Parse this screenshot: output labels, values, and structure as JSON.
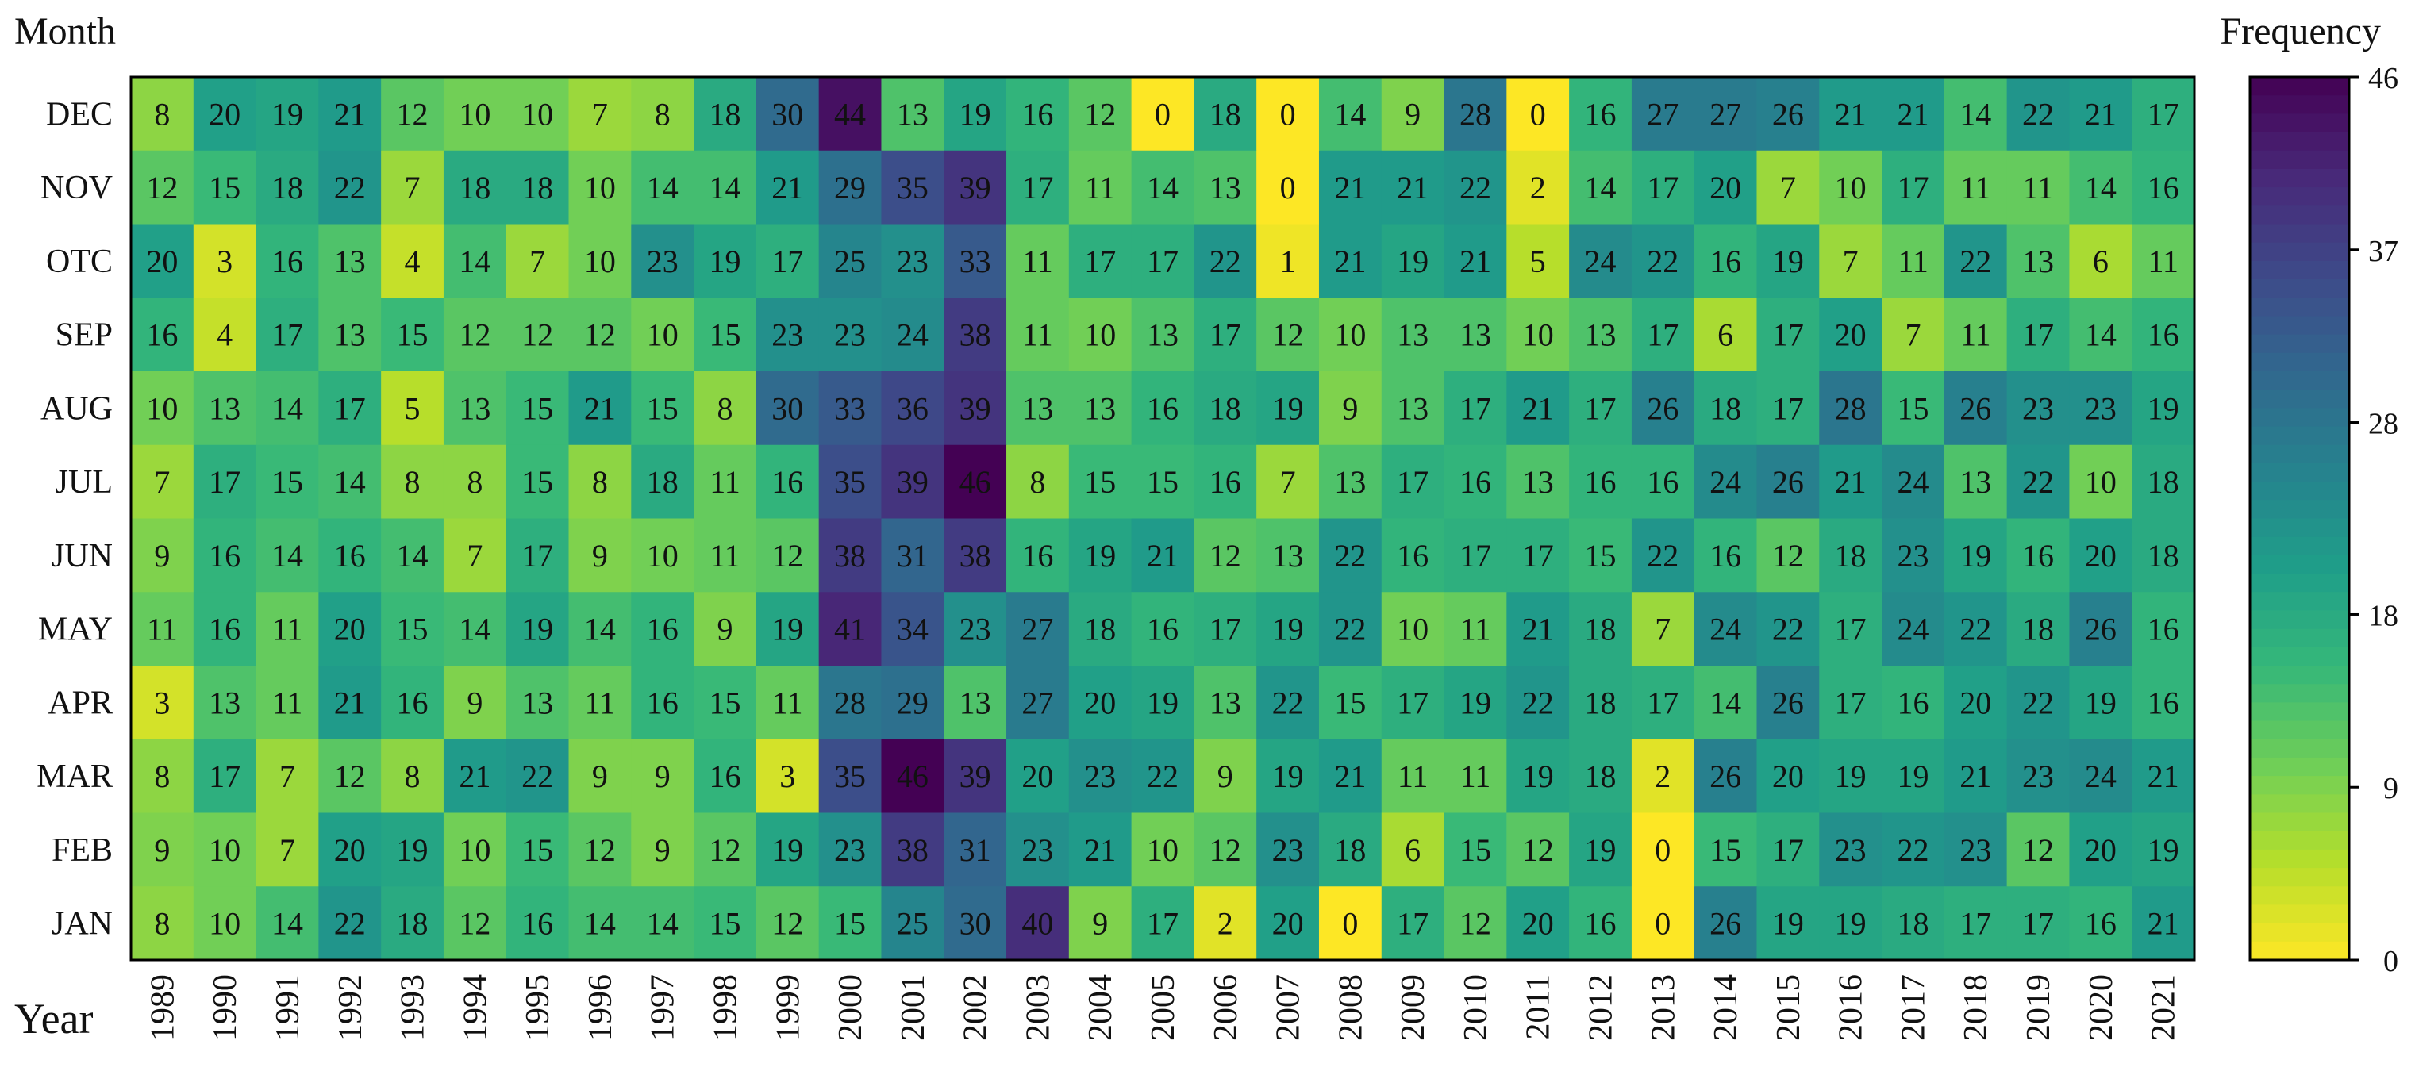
{
  "chart_data": {
    "type": "heatmap",
    "y_axis_title": "Month",
    "x_axis_title": "Year",
    "colorbar_title": "Frequency",
    "years": [
      "1989",
      "1990",
      "1991",
      "1992",
      "1993",
      "1994",
      "1995",
      "1996",
      "1997",
      "1998",
      "1999",
      "2000",
      "2001",
      "2002",
      "2003",
      "2004",
      "2005",
      "2006",
      "2007",
      "2008",
      "2009",
      "2010",
      "2011",
      "2012",
      "2013",
      "2014",
      "2015",
      "2016",
      "2017",
      "2018",
      "2019",
      "2020",
      "2021"
    ],
    "months": [
      "DEC",
      "NOV",
      "OTC",
      "SEP",
      "AUG",
      "JUL",
      "JUN",
      "MAY",
      "APR",
      "MAR",
      "FEB",
      "JAN"
    ],
    "values": [
      [
        8,
        20,
        19,
        21,
        12,
        10,
        10,
        7,
        8,
        18,
        30,
        44,
        13,
        19,
        16,
        12,
        0,
        18,
        0,
        14,
        9,
        28,
        0,
        16,
        27,
        27,
        26,
        21,
        21,
        14,
        22,
        21,
        17
      ],
      [
        12,
        15,
        18,
        22,
        7,
        18,
        18,
        10,
        14,
        14,
        21,
        29,
        35,
        39,
        17,
        11,
        14,
        13,
        0,
        21,
        21,
        22,
        2,
        14,
        17,
        20,
        7,
        10,
        17,
        11,
        11,
        14,
        16
      ],
      [
        20,
        3,
        16,
        13,
        4,
        14,
        7,
        10,
        23,
        19,
        17,
        25,
        23,
        33,
        11,
        17,
        17,
        22,
        1,
        21,
        19,
        21,
        5,
        24,
        22,
        16,
        19,
        7,
        11,
        22,
        13,
        6,
        11
      ],
      [
        16,
        4,
        17,
        13,
        15,
        12,
        12,
        12,
        10,
        15,
        23,
        23,
        24,
        38,
        11,
        10,
        13,
        17,
        12,
        10,
        13,
        13,
        10,
        13,
        17,
        6,
        17,
        20,
        7,
        11,
        17,
        14,
        16
      ],
      [
        10,
        13,
        14,
        17,
        5,
        13,
        15,
        21,
        15,
        8,
        30,
        33,
        36,
        39,
        13,
        13,
        16,
        18,
        19,
        9,
        13,
        17,
        21,
        17,
        26,
        18,
        17,
        28,
        15,
        26,
        23,
        23,
        19
      ],
      [
        7,
        17,
        15,
        14,
        8,
        8,
        15,
        8,
        18,
        11,
        16,
        35,
        39,
        46,
        8,
        15,
        15,
        16,
        7,
        13,
        17,
        16,
        13,
        16,
        16,
        24,
        26,
        21,
        24,
        13,
        22,
        10,
        18
      ],
      [
        9,
        16,
        14,
        16,
        14,
        7,
        17,
        9,
        10,
        11,
        12,
        38,
        31,
        38,
        16,
        19,
        21,
        12,
        13,
        22,
        16,
        17,
        17,
        15,
        22,
        16,
        12,
        18,
        23,
        19,
        16,
        20,
        18
      ],
      [
        11,
        16,
        11,
        20,
        15,
        14,
        19,
        14,
        16,
        9,
        19,
        41,
        34,
        23,
        27,
        18,
        16,
        17,
        19,
        22,
        10,
        11,
        21,
        18,
        7,
        24,
        22,
        17,
        24,
        22,
        18,
        26,
        16
      ],
      [
        3,
        13,
        11,
        21,
        16,
        9,
        13,
        11,
        16,
        15,
        11,
        28,
        29,
        13,
        27,
        20,
        19,
        13,
        22,
        15,
        17,
        19,
        22,
        18,
        17,
        14,
        26,
        17,
        16,
        20,
        22,
        19,
        16
      ],
      [
        8,
        17,
        7,
        12,
        8,
        21,
        22,
        9,
        9,
        16,
        3,
        35,
        46,
        39,
        20,
        23,
        22,
        9,
        19,
        21,
        11,
        11,
        19,
        18,
        2,
        26,
        20,
        19,
        19,
        21,
        23,
        24,
        21
      ],
      [
        9,
        10,
        7,
        20,
        19,
        10,
        15,
        12,
        9,
        12,
        19,
        23,
        38,
        31,
        23,
        21,
        10,
        12,
        23,
        18,
        6,
        15,
        12,
        19,
        0,
        15,
        17,
        23,
        22,
        23,
        12,
        20,
        19
      ],
      [
        8,
        10,
        14,
        22,
        18,
        12,
        16,
        14,
        14,
        15,
        12,
        15,
        25,
        30,
        40,
        9,
        17,
        2,
        20,
        0,
        17,
        12,
        20,
        16,
        0,
        26,
        19,
        19,
        18,
        17,
        17,
        16,
        21
      ]
    ],
    "colorbar_ticks": [
      "0",
      "9",
      "18",
      "28",
      "37",
      "46"
    ],
    "vmin": 0,
    "vmax": 46,
    "colormap": "viridis_r",
    "colormap_stops": [
      "#fde725",
      "#b5de2b",
      "#6ece58",
      "#35b779",
      "#1f9e89",
      "#26828e",
      "#31688e",
      "#3e4989",
      "#482878",
      "#440154"
    ]
  }
}
